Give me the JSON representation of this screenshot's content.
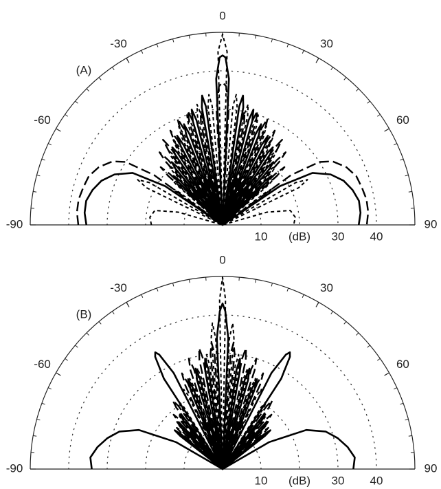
{
  "chart_data": [
    {
      "type": "polar",
      "label": "(A)",
      "xlim": [
        -90,
        90
      ],
      "xticks": [
        -90,
        -60,
        -30,
        0,
        30,
        60,
        90
      ],
      "ylim": [
        0,
        50
      ],
      "yticks": [
        10,
        {
          "value": 20,
          "label": "(dB)"
        },
        30,
        40
      ],
      "grid": true,
      "series": [
        {
          "style": "solid",
          "color": "#000000",
          "theta": [
            -90,
            -85,
            -80,
            -75,
            -70,
            -65,
            -60,
            -56,
            -52,
            -46,
            -45,
            -44,
            -42,
            -40,
            -39,
            -38,
            -36,
            -34,
            -33,
            -32,
            -30,
            -28,
            -27,
            -26,
            -24,
            -22,
            -21,
            -20,
            -18,
            -16,
            -15,
            -14,
            -12,
            -10,
            -9,
            -8,
            -5,
            -2.5,
            -1,
            0,
            1,
            2.5,
            5,
            8,
            9,
            10,
            12,
            14,
            15,
            16,
            18,
            20,
            21,
            22,
            24,
            26,
            27,
            28,
            30,
            32,
            33,
            34,
            36,
            38,
            39,
            40,
            42,
            44,
            45,
            46,
            52,
            56,
            60,
            65,
            70,
            75,
            80,
            85,
            90
          ],
          "values": [
            35.4,
            36,
            36,
            35,
            33.5,
            31,
            27,
            18,
            0,
            16,
            18,
            16,
            0,
            19,
            21,
            19,
            0,
            22,
            24,
            22,
            0,
            23,
            26,
            23,
            0,
            25,
            28,
            25,
            0,
            28,
            31,
            28,
            0,
            31,
            34,
            31,
            0,
            38,
            43.5,
            44,
            43.5,
            38,
            0,
            31,
            34,
            31,
            0,
            28,
            31,
            28,
            0,
            25,
            28,
            25,
            0,
            23,
            26,
            23,
            0,
            22,
            24,
            22,
            0,
            19,
            21,
            19,
            0,
            16,
            18,
            16,
            0,
            18,
            27,
            31,
            33.5,
            35,
            36,
            36,
            35.4
          ]
        },
        {
          "style": "dashed",
          "color": "#000000",
          "theta": [
            -90,
            -85,
            -80,
            -75,
            -70,
            -65,
            -60,
            -57,
            -54,
            -50,
            -48,
            -47,
            -46,
            -44,
            -42,
            -41,
            -40,
            -38,
            -36,
            -35,
            -34,
            -32,
            -30,
            -29,
            -28,
            -26,
            -24,
            -23,
            -22,
            -20,
            -18,
            -17,
            -16,
            -14,
            -12,
            -11,
            -10,
            -8,
            -3,
            -1.5,
            0,
            1.5,
            3,
            8,
            10,
            11,
            12,
            14,
            16,
            17,
            18,
            20,
            22,
            23,
            24,
            26,
            28,
            29,
            30,
            32,
            34,
            35,
            36,
            38,
            40,
            41,
            42,
            44,
            46,
            47,
            48,
            50,
            54,
            57,
            60,
            65,
            70,
            75,
            80,
            85,
            90
          ],
          "values": [
            37.5,
            38,
            38,
            37.5,
            37,
            35.5,
            33,
            30,
            22,
            0,
            19,
            22,
            19,
            0,
            22,
            25,
            22,
            0,
            24,
            27,
            24,
            0,
            25,
            28,
            25,
            0,
            27,
            30,
            27,
            0,
            28,
            31,
            28,
            0,
            27,
            30,
            27,
            0,
            30,
            36,
            37,
            36,
            30,
            0,
            27,
            30,
            27,
            0,
            28,
            31,
            28,
            0,
            27,
            30,
            27,
            0,
            25,
            28,
            25,
            0,
            24,
            27,
            24,
            0,
            22,
            25,
            22,
            0,
            19,
            22,
            19,
            0,
            22,
            30,
            33,
            35.5,
            37,
            37.5,
            38,
            38,
            37.5
          ]
        },
        {
          "style": "dotted",
          "color": "#000000",
          "theta": [
            -90,
            -84,
            -78,
            -74,
            -71,
            -64,
            -62,
            -60,
            -57,
            -55,
            -54,
            -53,
            -51,
            -49,
            -48,
            -47,
            -45,
            -43,
            -42,
            -41,
            -39,
            -37,
            -36,
            -35,
            -33,
            -31,
            -30,
            -29,
            -27,
            -25,
            -24,
            -23,
            -21,
            -19,
            -18,
            -17,
            -15,
            -13,
            -12,
            -11,
            -9,
            -7,
            -6,
            -5,
            -3,
            -1.5,
            0,
            1.5,
            3,
            5,
            6,
            7,
            9,
            11,
            12,
            13,
            15,
            17,
            18,
            19,
            21,
            23,
            24,
            25,
            27,
            29,
            30,
            31,
            33,
            35,
            36,
            37,
            39,
            41,
            42,
            43,
            45,
            47,
            48,
            49,
            51,
            53,
            54,
            55,
            57,
            60,
            62,
            64,
            71,
            74,
            78,
            84,
            90
          ],
          "values": [
            18.5,
            19,
            18,
            12,
            0,
            22,
            25,
            22,
            0,
            14,
            16,
            14,
            0,
            16,
            18,
            16,
            0,
            19,
            21,
            19,
            0,
            22,
            24,
            22,
            0,
            23,
            26,
            23,
            0,
            25,
            28,
            25,
            0,
            27,
            30,
            27,
            0,
            29,
            32,
            29,
            0,
            31,
            34,
            31,
            0,
            45,
            49.5,
            45,
            0,
            31,
            34,
            31,
            0,
            29,
            32,
            29,
            0,
            27,
            30,
            27,
            0,
            25,
            28,
            25,
            0,
            23,
            26,
            23,
            0,
            22,
            24,
            22,
            0,
            19,
            21,
            19,
            0,
            16,
            18,
            16,
            0,
            14,
            16,
            14,
            0,
            22,
            25,
            22,
            0,
            12,
            18,
            19,
            18.5
          ]
        }
      ]
    },
    {
      "type": "polar",
      "label": "(B)",
      "xlim": [
        -90,
        90
      ],
      "xticks": [
        -90,
        -60,
        -30,
        0,
        30,
        60,
        90
      ],
      "ylim": [
        0,
        50
      ],
      "yticks": [
        10,
        {
          "value": 20,
          "label": "(dB)"
        },
        30,
        40
      ],
      "grid": true,
      "series": [
        {
          "style": "solid",
          "color": "#000000",
          "theta": [
            -90,
            -85,
            -80,
            -75,
            -70,
            -65,
            -60,
            -57,
            -52,
            -51,
            -50,
            -48,
            -45,
            -44,
            -43,
            -41,
            -39,
            -38,
            -37,
            -35,
            -33,
            -31,
            -30,
            -29,
            -27,
            -25,
            -22,
            -21,
            -20,
            -18,
            -16,
            -15,
            -14,
            -12,
            -10,
            -9,
            -8,
            -6,
            -2.5,
            -1,
            0,
            1,
            2.5,
            6,
            8,
            9,
            10,
            12,
            14,
            15,
            16,
            18,
            20,
            21,
            22,
            25,
            27,
            29,
            30,
            31,
            33,
            35,
            37,
            38,
            39,
            41,
            43,
            44,
            45,
            48,
            50,
            51,
            52,
            57,
            60,
            65,
            70,
            75,
            80,
            85,
            90
          ],
          "values": [
            34,
            34.5,
            33,
            31,
            28.5,
            24,
            14,
            0,
            14,
            16,
            14,
            0,
            15,
            17,
            15,
            0,
            16,
            18,
            16,
            0,
            28,
            34,
            35,
            34,
            28,
            0,
            22,
            25,
            22,
            0,
            24,
            27,
            24,
            0,
            26,
            29,
            26,
            0,
            34,
            41,
            43,
            41,
            34,
            0,
            26,
            29,
            26,
            0,
            24,
            27,
            24,
            0,
            22,
            25,
            22,
            0,
            28,
            34,
            35,
            34,
            28,
            0,
            16,
            18,
            16,
            0,
            15,
            17,
            15,
            0,
            14,
            16,
            14,
            0,
            14,
            24,
            28.5,
            31,
            33,
            34.5,
            34
          ]
        },
        {
          "style": "dashed",
          "color": "#000000",
          "theta": [
            -51,
            -49,
            -48,
            -47,
            -45,
            -43,
            -42,
            -41,
            -39,
            -37,
            -36,
            -35,
            -33,
            -26,
            -24,
            -23,
            -22,
            -20,
            -18,
            -17,
            -16,
            -14,
            -12,
            -11,
            -10,
            -8,
            -6,
            -5,
            -4,
            -2,
            2,
            4,
            5,
            6,
            8,
            10,
            11,
            12,
            14,
            16,
            17,
            18,
            20,
            22,
            23,
            24,
            26,
            33,
            35,
            36,
            37,
            39,
            41,
            42,
            43,
            45,
            47,
            48,
            49,
            51
          ],
          "values": [
            0,
            14,
            16,
            14,
            0,
            17,
            19,
            17,
            0,
            20,
            22,
            20,
            0,
            0,
            24,
            27,
            24,
            0,
            27,
            30,
            27,
            0,
            29,
            32,
            29,
            0,
            30,
            33,
            30,
            0,
            0,
            30,
            33,
            30,
            0,
            29,
            32,
            29,
            0,
            27,
            30,
            27,
            0,
            24,
            27,
            24,
            0,
            0,
            20,
            22,
            20,
            0,
            17,
            19,
            17,
            0,
            14,
            16,
            14,
            0
          ]
        },
        {
          "style": "dotted",
          "color": "#000000",
          "theta": [
            -53,
            -52,
            -51,
            -50,
            -48,
            -46,
            -45,
            -44,
            -42,
            -40,
            -39,
            -38,
            -36,
            -34,
            -33,
            -32,
            -30,
            -27,
            -26,
            -25,
            -23,
            -21,
            -20,
            -19,
            -17,
            -15,
            -14,
            -13,
            -11,
            -9,
            -8,
            -7,
            -6,
            -5,
            -4,
            -3,
            -2,
            -1,
            0,
            1,
            2,
            3,
            4,
            5,
            6,
            7,
            8,
            9,
            11,
            13,
            14,
            15,
            17,
            19,
            20,
            21,
            23,
            25,
            26,
            27,
            30,
            32,
            33,
            34,
            36,
            38,
            39,
            40,
            42,
            44,
            45,
            46,
            48,
            50,
            51,
            52,
            53
          ],
          "values": [
            0,
            12,
            14,
            12,
            0,
            14,
            16,
            14,
            0,
            16,
            18,
            16,
            0,
            19,
            21,
            19,
            0,
            21,
            23,
            21,
            0,
            22,
            25,
            22,
            0,
            24,
            27,
            24,
            0,
            27,
            30,
            27,
            0,
            34,
            38,
            34,
            0,
            44,
            49.8,
            44,
            0,
            34,
            38,
            34,
            0,
            27,
            30,
            27,
            0,
            24,
            27,
            24,
            0,
            22,
            25,
            22,
            0,
            21,
            23,
            21,
            0,
            19,
            21,
            19,
            0,
            16,
            18,
            16,
            0,
            14,
            16,
            14,
            0,
            12,
            14,
            12,
            0
          ]
        }
      ]
    }
  ]
}
